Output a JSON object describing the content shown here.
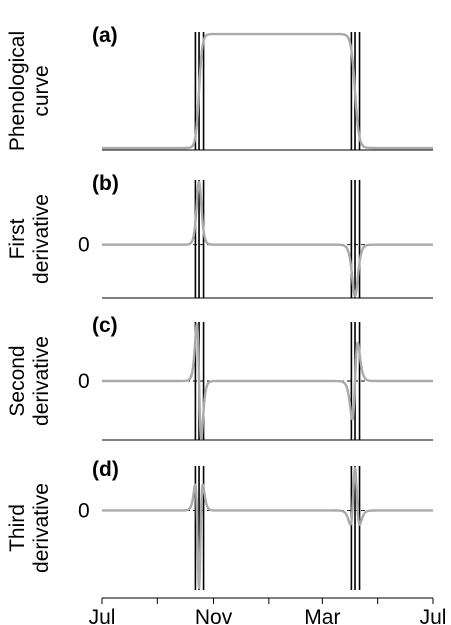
{
  "chart_data": [
    {
      "type": "line",
      "panel": "(a)",
      "ylabel": [
        "Phenological",
        "curve"
      ],
      "zero_line": false,
      "baseline": 0,
      "peak": 1,
      "start_transition_day": 107,
      "end_transition_day": 279,
      "ylim": [
        0,
        1
      ],
      "color": "#aaaaaa"
    },
    {
      "type": "line",
      "panel": "(b)",
      "ylabel": [
        "First",
        "derivative"
      ],
      "zero_line": true,
      "zero_label": "0",
      "color": "#aaaaaa"
    },
    {
      "type": "line",
      "panel": "(c)",
      "ylabel": [
        "Second",
        "derivative"
      ],
      "zero_line": true,
      "zero_label": "0",
      "color": "#aaaaaa"
    },
    {
      "type": "line",
      "panel": "(d)",
      "ylabel": [
        "Third",
        "derivative"
      ],
      "zero_line": true,
      "zero_label": "0",
      "color": "#aaaaaa"
    }
  ],
  "x_axis": {
    "tick_labels": [
      "Jul",
      "Nov",
      "Mar",
      "Jul"
    ],
    "tick_days": [
      0,
      123,
      243,
      365
    ],
    "minor_tick_days": [
      61,
      184,
      304
    ],
    "xlim": [
      0,
      365
    ]
  },
  "vertical_lines": {
    "days": [
      103,
      107,
      112,
      275,
      279,
      284
    ],
    "color": "#000000"
  }
}
